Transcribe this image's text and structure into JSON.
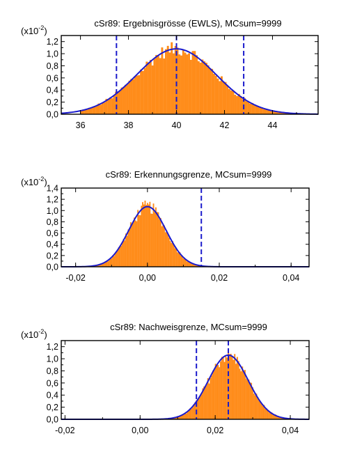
{
  "colors": {
    "bars": "#ff8c1a",
    "bars_edge": "#ff8000",
    "curve": "#1a1acc",
    "vlines": "#1a1acc",
    "axis": "#000000",
    "background": "#ffffff"
  },
  "chart_data": [
    {
      "type": "histogram",
      "title": "cSr89:  Ergebnisgrösse (EWLS),  MCsum=9999",
      "y_exponent": "(x10",
      "y_exponent_power": "-2",
      "y_exponent_close": ")",
      "xlim": [
        35.2,
        45.9
      ],
      "ylim": [
        0,
        1.3
      ],
      "xticks": [
        36,
        38,
        40,
        42,
        44
      ],
      "xtick_labels": [
        "36",
        "38",
        "40",
        "42",
        "44"
      ],
      "yticks": [
        0,
        0.2,
        0.4,
        0.6,
        0.8,
        1.0,
        1.2
      ],
      "ytick_labels": [
        "0,0",
        "0,2",
        "0,4",
        "0,6",
        "0,8",
        "1,0",
        "1,2"
      ],
      "distribution": {
        "mean": 40.0,
        "sd": 1.65,
        "peak": 1.08
      },
      "vertical_lines": [
        37.5,
        40.0,
        42.8
      ],
      "hist_range": [
        36.0,
        45.2
      ],
      "bins": 115
    },
    {
      "type": "histogram",
      "title": "cSr89:  Erkennungsgrenze,  MCsum=9999",
      "y_exponent": "(x10",
      "y_exponent_power": "-2",
      "y_exponent_close": ")",
      "xlim": [
        -0.024,
        0.045
      ],
      "ylim": [
        0,
        1.4
      ],
      "xticks": [
        -0.02,
        0.0,
        0.02,
        0.04
      ],
      "xtick_labels": [
        "-0,02",
        "0,00",
        "0,02",
        "0,04"
      ],
      "yticks": [
        0,
        0.2,
        0.4,
        0.6,
        0.8,
        1.0,
        1.2,
        1.4
      ],
      "ytick_labels": [
        "0,0",
        "0,2",
        "0,4",
        "0,6",
        "0,8",
        "1,0",
        "1,2",
        "1,4"
      ],
      "distribution": {
        "mean": 0.0,
        "sd": 0.0052,
        "peak": 1.07
      },
      "vertical_lines": [
        0.015
      ],
      "hist_range": [
        -0.0165,
        0.0155
      ],
      "bins": 96
    },
    {
      "type": "histogram",
      "title": "cSr89:  Nachweisgrenze,  MCsum=9999",
      "y_exponent": "(x10",
      "y_exponent_power": "-2",
      "y_exponent_close": ")",
      "xlim": [
        -0.021,
        0.045
      ],
      "ylim": [
        0,
        1.3
      ],
      "xticks": [
        -0.02,
        0.0,
        0.02,
        0.04
      ],
      "xtick_labels": [
        "-0,02",
        "0,00",
        "0,02",
        "0,04"
      ],
      "yticks": [
        0,
        0.2,
        0.4,
        0.6,
        0.8,
        1.0,
        1.2
      ],
      "ytick_labels": [
        "0,0",
        "0,2",
        "0,4",
        "0,6",
        "0,8",
        "1,0",
        "1,2"
      ],
      "distribution": {
        "mean": 0.0235,
        "sd": 0.0053,
        "peak": 1.06
      },
      "vertical_lines": [
        0.015,
        0.0235
      ],
      "hist_range": [
        0.007,
        0.041
      ],
      "bins": 100
    }
  ]
}
